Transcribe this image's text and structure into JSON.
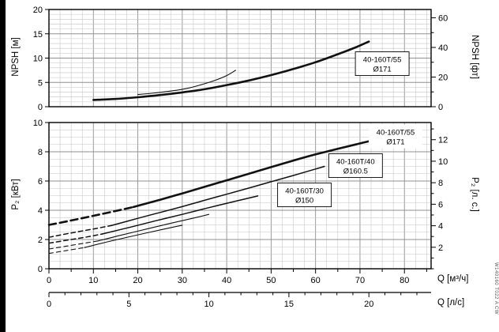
{
  "side_code": "W140160 T022 A CW",
  "chart_data": [
    {
      "type": "line",
      "title": "NPSH curves",
      "ylabel_left": "NPSH [м]",
      "ylabel_right": "NPSH [фт]",
      "x_range": [
        0,
        86
      ],
      "y_range": [
        0,
        20
      ],
      "y_ticks_left": [
        0,
        5,
        10,
        15,
        20
      ],
      "y_ticks_right": [
        0,
        20,
        40,
        60
      ],
      "grid": true,
      "legend_position": "none",
      "series": [
        {
          "id": "npsh-40-160T-55-d171",
          "name": "40-160T/55 Ø171",
          "weight": "bold",
          "points": [
            [
              10,
              1.4
            ],
            [
              15,
              1.6
            ],
            [
              20,
              1.95
            ],
            [
              25,
              2.4
            ],
            [
              30,
              2.95
            ],
            [
              35,
              3.6
            ],
            [
              40,
              4.45
            ],
            [
              45,
              5.4
            ],
            [
              50,
              6.5
            ],
            [
              55,
              7.75
            ],
            [
              60,
              9.15
            ],
            [
              65,
              10.8
            ],
            [
              69,
              12.2
            ],
            [
              72,
              13.4
            ]
          ]
        },
        {
          "id": "npsh-40-160T-40-d160-5",
          "name": "40-160T/40 Ø160.5",
          "weight": "thin",
          "points": [
            [
              20,
              2.5
            ],
            [
              24,
              2.85
            ],
            [
              28,
              3.3
            ],
            [
              31,
              3.75
            ],
            [
              34,
              4.45
            ],
            [
              37,
              5.3
            ],
            [
              40,
              6.4
            ],
            [
              42,
              7.5
            ]
          ]
        }
      ],
      "annotations": [
        {
          "lines": [
            "40-160T/55",
            "Ø171"
          ],
          "x": 75,
          "y": 8.85,
          "boxed": true
        }
      ]
    },
    {
      "type": "line",
      "title": "Power curves",
      "ylabel_left": "P₂ [кВт]",
      "ylabel_right": "P₂ [л. с.]",
      "xlabel": "Q [м³/ч]",
      "xlabel2": "Q [л/с]",
      "x_range": [
        0,
        86
      ],
      "y_range": [
        0,
        10
      ],
      "x_ticks": [
        0,
        10,
        20,
        30,
        40,
        50,
        60,
        70,
        80
      ],
      "x_ticks2": [
        0,
        5,
        10,
        15,
        20
      ],
      "y_ticks_left": [
        0,
        2,
        4,
        6,
        8,
        10
      ],
      "y_ticks_right": [
        2,
        4,
        6,
        8,
        10,
        12
      ],
      "grid": true,
      "legend_position": "none",
      "series": [
        {
          "id": "p2-40-160T-55-d171",
          "name": "40-160T/55 Ø171",
          "weight": "bold",
          "dashed_points": [
            [
              0,
              3.0
            ],
            [
              5,
              3.3
            ],
            [
              10,
              3.62
            ],
            [
              15,
              3.95
            ],
            [
              19,
              4.22
            ]
          ],
          "points": [
            [
              19,
              4.22
            ],
            [
              25,
              4.72
            ],
            [
              30,
              5.15
            ],
            [
              35,
              5.6
            ],
            [
              40,
              6.05
            ],
            [
              45,
              6.5
            ],
            [
              50,
              6.95
            ],
            [
              55,
              7.4
            ],
            [
              60,
              7.82
            ],
            [
              65,
              8.2
            ],
            [
              69,
              8.5
            ],
            [
              72,
              8.72
            ]
          ]
        },
        {
          "id": "p2-40-160T-40-d160-5",
          "name": "40-160T/40 Ø160.5",
          "weight": "medium",
          "dashed_points": [
            [
              0,
              2.15
            ],
            [
              5,
              2.45
            ],
            [
              10,
              2.72
            ],
            [
              14,
              2.95
            ]
          ],
          "points": [
            [
              14,
              2.95
            ],
            [
              20,
              3.45
            ],
            [
              25,
              3.85
            ],
            [
              30,
              4.25
            ],
            [
              35,
              4.68
            ],
            [
              40,
              5.1
            ],
            [
              45,
              5.52
            ],
            [
              50,
              5.95
            ],
            [
              55,
              6.38
            ],
            [
              60,
              6.82
            ],
            [
              62,
              7.0
            ]
          ]
        },
        {
          "id": "p2-40-160T-30-d150",
          "name": "40-160T/30 Ø150",
          "weight": "medium",
          "dashed_points": [
            [
              0,
              1.75
            ],
            [
              5,
              2.0
            ],
            [
              9,
              2.2
            ],
            [
              12,
              2.38
            ]
          ],
          "points": [
            [
              12,
              2.38
            ],
            [
              18,
              2.82
            ],
            [
              24,
              3.28
            ],
            [
              30,
              3.72
            ],
            [
              36,
              4.18
            ],
            [
              42,
              4.62
            ],
            [
              47,
              4.98
            ]
          ]
        },
        {
          "id": "p2-curve-4",
          "name": "",
          "weight": "thin",
          "dashed_points": [
            [
              0,
              1.35
            ],
            [
              4,
              1.55
            ],
            [
              8,
              1.75
            ],
            [
              11,
              1.9
            ]
          ],
          "points": [
            [
              11,
              1.9
            ],
            [
              16,
              2.28
            ],
            [
              22,
              2.72
            ],
            [
              28,
              3.15
            ],
            [
              33,
              3.5
            ],
            [
              36,
              3.72
            ]
          ]
        },
        {
          "id": "p2-curve-5",
          "name": "",
          "weight": "thin",
          "dashed_points": [
            [
              0,
              1.05
            ],
            [
              4,
              1.25
            ],
            [
              8,
              1.45
            ]
          ],
          "points": [
            [
              8,
              1.45
            ],
            [
              14,
              1.9
            ],
            [
              20,
              2.32
            ],
            [
              26,
              2.72
            ],
            [
              30,
              2.98
            ]
          ]
        }
      ],
      "annotations": [
        {
          "lines": [
            "40-160T/55",
            "Ø171"
          ],
          "x": 78,
          "y": 9.05,
          "boxed": false
        },
        {
          "lines": [
            "40-160T/40",
            "Ø160.5"
          ],
          "x": 69,
          "y": 7.05,
          "boxed": true
        },
        {
          "lines": [
            "40-160T/30",
            "Ø150"
          ],
          "x": 57.5,
          "y": 5.05,
          "boxed": true
        }
      ]
    }
  ]
}
